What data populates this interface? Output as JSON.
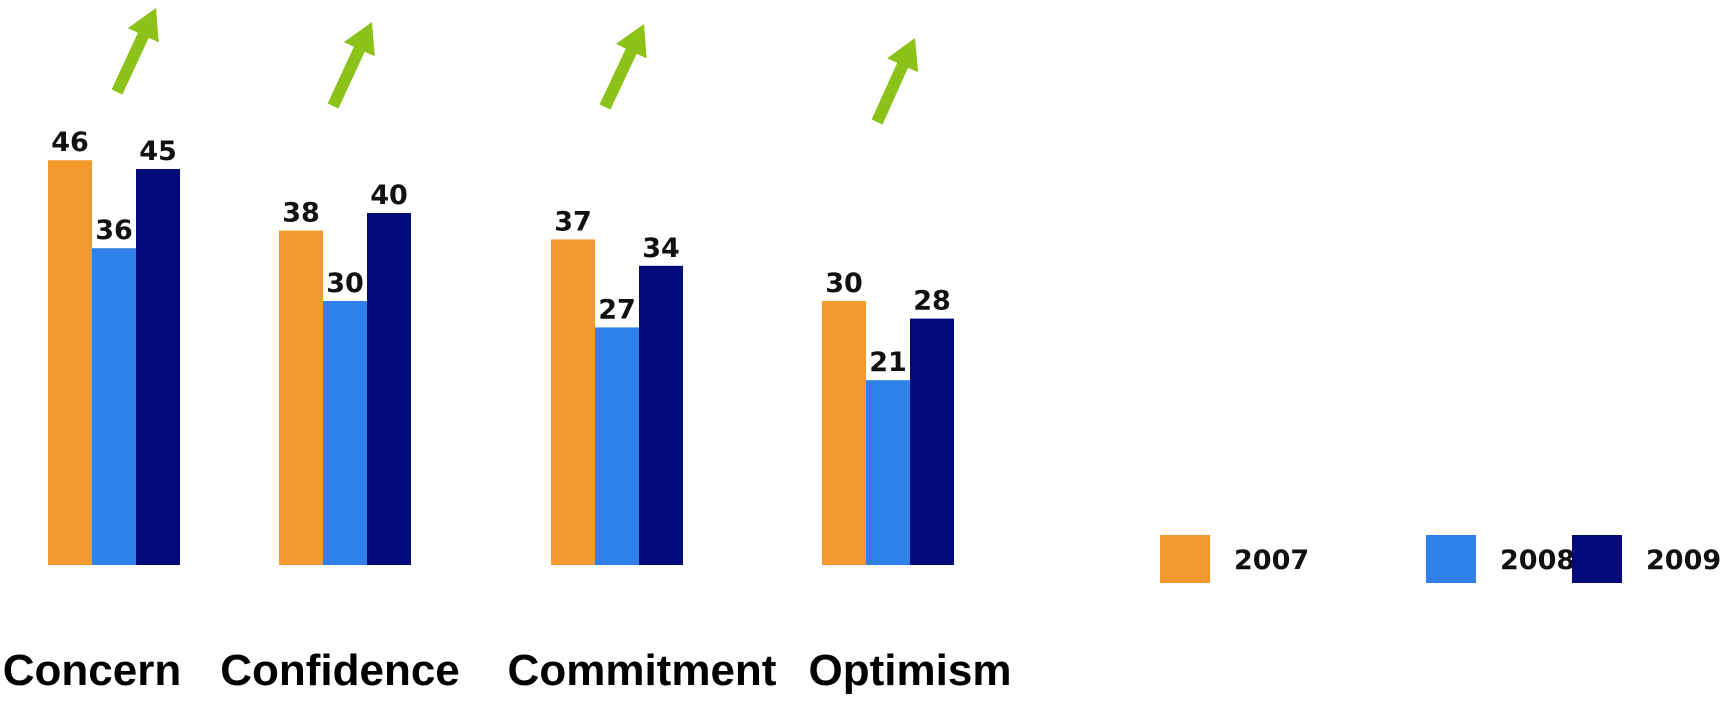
{
  "chart_data": {
    "type": "bar",
    "categories": [
      "Concern",
      "Confidence",
      "Commitment",
      "Optimism"
    ],
    "series": [
      {
        "name": "2007",
        "color": "#f29a2e",
        "values": [
          46,
          38,
          37,
          30
        ]
      },
      {
        "name": "2008",
        "color": "#2f80e8",
        "values": [
          36,
          30,
          27,
          21
        ]
      },
      {
        "name": "2009",
        "color": "#050a7a",
        "values": [
          45,
          40,
          34,
          28
        ]
      }
    ],
    "trend_markers": [
      "up-arrow",
      "up-arrow",
      "up-arrow",
      "up-arrow"
    ],
    "trend_color": "#8cc21a",
    "legend_position": "right",
    "grid": false,
    "axes_visible": false,
    "title": "",
    "xlabel": "",
    "ylabel": "",
    "ylim": [
      0,
      46
    ]
  }
}
